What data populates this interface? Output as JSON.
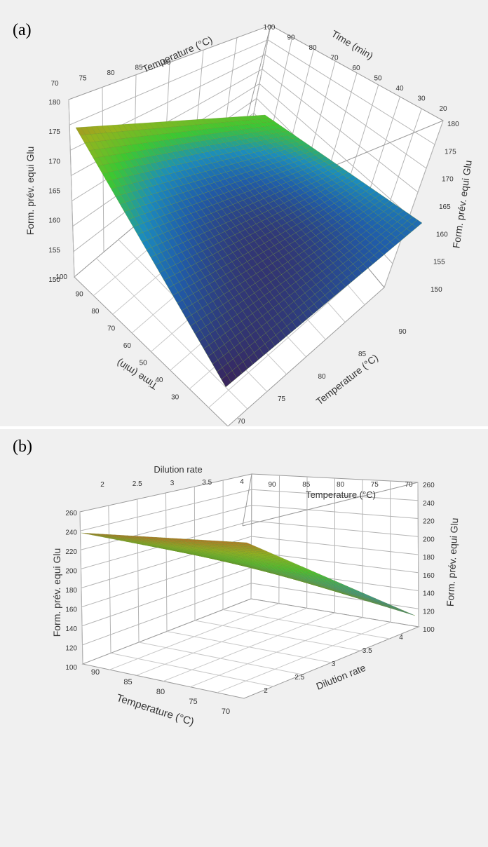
{
  "panels": [
    {
      "label": "(a)"
    },
    {
      "label": "(b)"
    }
  ],
  "chart_data": [
    {
      "type": "surface",
      "panel": "(a)",
      "x": {
        "label": "Temperature (°C)",
        "ticks": [
          70,
          75,
          80,
          85,
          90
        ],
        "range": [
          68,
          92
        ]
      },
      "y": {
        "label": "Time (min)",
        "ticks": [
          20,
          30,
          40,
          50,
          60,
          70,
          80,
          90,
          100
        ],
        "range": [
          20,
          100
        ]
      },
      "z": {
        "label": "Form. prév. equi Glu",
        "ticks": [
          150,
          155,
          160,
          165,
          170,
          175,
          180
        ],
        "range": [
          150,
          180
        ]
      },
      "surface_corners": [
        {
          "temperature": 68,
          "time": 100,
          "value": 177
        },
        {
          "temperature": 92,
          "time": 100,
          "value": 172
        },
        {
          "temperature": 92,
          "time": 20,
          "value": 161
        },
        {
          "temperature": 68,
          "time": 20,
          "value": 150
        }
      ],
      "minimum": {
        "temperature": 76,
        "time": 35,
        "value": 150
      },
      "grid": true
    },
    {
      "type": "surface",
      "panel": "(b)",
      "x": {
        "label": "Dilution rate",
        "ticks": [
          2,
          2.5,
          3,
          3.5,
          4
        ],
        "range": [
          1.8,
          4.2
        ]
      },
      "y": {
        "label": "Temperature (°C)",
        "ticks": [
          70,
          75,
          80,
          85,
          90
        ],
        "range": [
          68,
          92
        ]
      },
      "z": {
        "label": "Form. prév. equi Glu",
        "ticks": [
          100,
          120,
          140,
          160,
          180,
          200,
          220,
          240,
          260
        ],
        "range": [
          100,
          260
        ]
      },
      "surface_corners": [
        {
          "dilution_rate": 1.8,
          "temperature": 92,
          "value": 235
        },
        {
          "dilution_rate": 4.2,
          "temperature": 92,
          "value": 227
        },
        {
          "dilution_rate": 4.2,
          "temperature": 68,
          "value": 118
        },
        {
          "dilution_rate": 1.8,
          "temperature": 68,
          "value": 140
        }
      ],
      "grid": true
    }
  ]
}
